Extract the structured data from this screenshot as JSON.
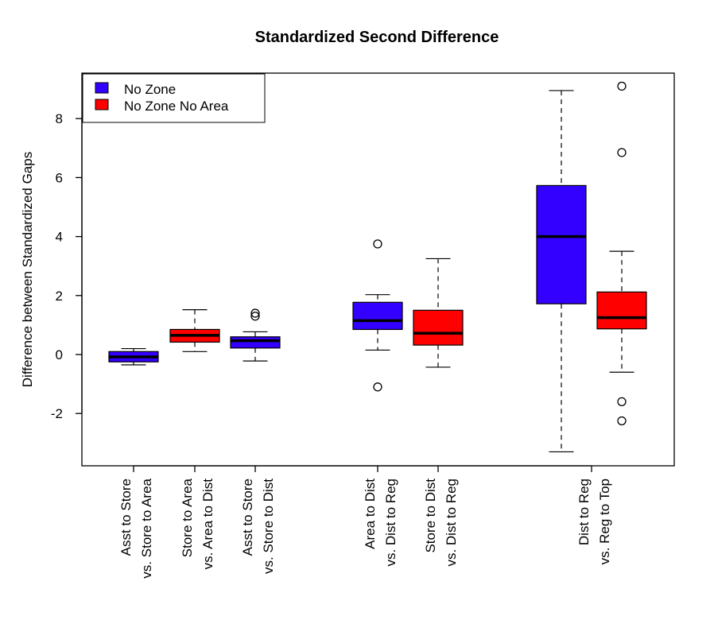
{
  "chart_data": {
    "type": "boxplot",
    "title": "Standardized Second Difference",
    "ylabel": "Difference between Standardized Gaps",
    "xlabel": "",
    "ylim": [
      -3.8,
      9.5
    ],
    "yticks": [
      -2,
      0,
      2,
      4,
      6,
      8
    ],
    "legend": {
      "placement": "top-left",
      "entries": [
        {
          "name": "No Zone",
          "color": "#3300ff"
        },
        {
          "name": "No Zone No Area",
          "color": "#ff0000"
        }
      ]
    },
    "boxes": [
      {
        "label1": "Asst to Store",
        "label2": "vs. Store to Area",
        "series": 0,
        "whisker_low": -0.35,
        "q1": -0.25,
        "median": -0.08,
        "q3": 0.1,
        "whisker_high": 0.2,
        "outliers": []
      },
      {
        "label1": "Store to Area",
        "label2": "vs. Area to Dist",
        "series": 1,
        "whisker_low": 0.1,
        "q1": 0.42,
        "median": 0.65,
        "q3": 0.85,
        "whisker_high": 1.52,
        "outliers": []
      },
      {
        "label1": "Asst to Store",
        "label2": "vs. Store to Dist",
        "series": 0,
        "whisker_low": -0.22,
        "q1": 0.22,
        "median": 0.47,
        "q3": 0.6,
        "whisker_high": 0.77,
        "outliers": [
          1.3,
          1.4
        ]
      },
      {
        "label1": "Area to Dist",
        "label2": "vs. Dist to Reg",
        "series": 0,
        "whisker_low": 0.15,
        "q1": 0.85,
        "median": 1.15,
        "q3": 1.77,
        "whisker_high": 2.03,
        "outliers": [
          3.75,
          -1.1
        ]
      },
      {
        "label1": "Store to Dist",
        "label2": "vs. Dist to Reg",
        "series": 1,
        "whisker_low": -0.43,
        "q1": 0.32,
        "median": 0.72,
        "q3": 1.5,
        "whisker_high": 3.25,
        "outliers": []
      },
      {
        "label1": "Dist to Reg",
        "label2": "vs. Reg to Top",
        "series": 0,
        "whisker_low": -3.3,
        "q1": 1.72,
        "median": 4.0,
        "q3": 5.73,
        "whisker_high": 8.95,
        "outliers": []
      },
      {
        "label1": "",
        "label2": "",
        "series": 1,
        "whisker_low": -0.6,
        "q1": 0.87,
        "median": 1.25,
        "q3": 2.12,
        "whisker_high": 3.5,
        "outliers": [
          9.1,
          6.85,
          -1.6,
          -2.25
        ]
      }
    ],
    "tick_labels": [
      {
        "line1": "Asst to Store",
        "line2": "vs. Store to Area"
      },
      {
        "line1": "Store to Area",
        "line2": "vs. Area to Dist"
      },
      {
        "line1": "Asst to Store",
        "line2": "vs. Store to Dist"
      },
      {
        "line1": "Area to Dist",
        "line2": "vs. Dist to Reg"
      },
      {
        "line1": "Store to Dist",
        "line2": "vs. Dist to Reg"
      },
      {
        "line1": "Dist to Reg",
        "line2": "vs. Reg to Top"
      }
    ]
  }
}
